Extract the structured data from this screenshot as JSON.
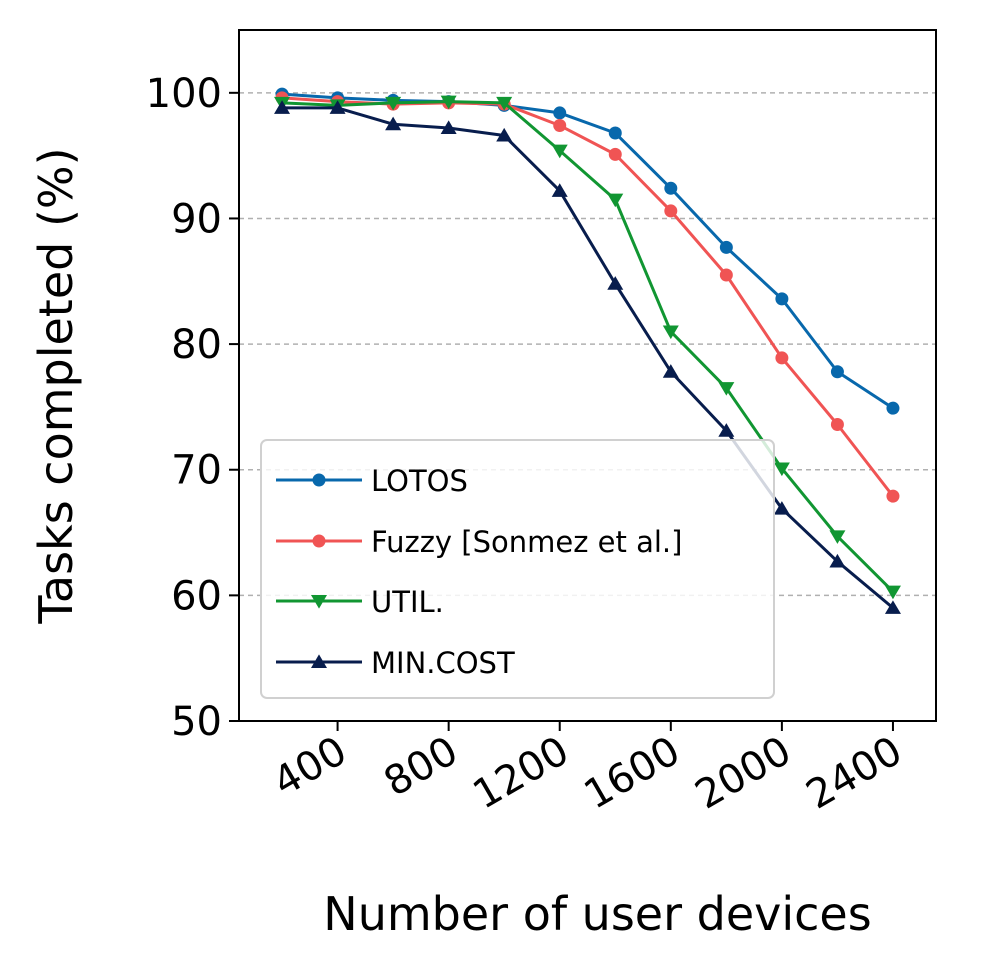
{
  "chart_data": {
    "type": "line",
    "title": "",
    "xlabel": "Number of user devices",
    "ylabel": "Tasks completed (%)",
    "xlim": [
      45,
      2555
    ],
    "ylim": [
      50,
      105
    ],
    "xticks": [
      400,
      800,
      1200,
      1600,
      2000,
      2400
    ],
    "yticks": [
      50,
      60,
      70,
      80,
      90,
      100
    ],
    "grid": "horizontal dashed at y ticks",
    "legend_position": "lower-left",
    "x": [
      200,
      400,
      600,
      800,
      1000,
      1200,
      1400,
      1600,
      1800,
      2000,
      2200,
      2400
    ],
    "series": [
      {
        "name": "LOTOS",
        "color": "#0868ac",
        "marker": "circle",
        "values": [
          99.9,
          99.6,
          99.4,
          99.3,
          99.0,
          98.4,
          96.8,
          92.4,
          87.7,
          83.6,
          77.8,
          74.9
        ]
      },
      {
        "name": "Fuzzy [Sonmez et al.]",
        "color": "#f05454",
        "marker": "circle",
        "values": [
          99.6,
          99.3,
          99.1,
          99.2,
          99.1,
          97.4,
          95.1,
          90.6,
          85.5,
          78.9,
          73.6,
          67.9
        ]
      },
      {
        "name": "UTIL.",
        "color": "#119632",
        "marker": "triangle-down",
        "values": [
          99.2,
          99.0,
          99.2,
          99.3,
          99.2,
          95.4,
          91.5,
          81.0,
          76.5,
          70.1,
          64.7,
          60.3
        ]
      },
      {
        "name": "MIN.COST",
        "color": "#081d4d",
        "marker": "triangle-up",
        "values": [
          98.8,
          98.8,
          97.5,
          97.2,
          96.6,
          92.2,
          84.8,
          77.8,
          73.1,
          66.9,
          62.7,
          59.0
        ]
      }
    ]
  }
}
